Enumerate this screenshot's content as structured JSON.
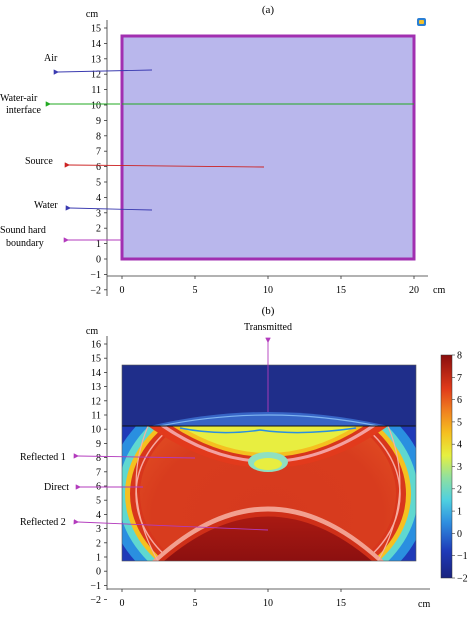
{
  "panel_a": {
    "label": "(a)",
    "y_unit": "cm",
    "x_unit": "cm",
    "y_ticks": [
      "15",
      "14",
      "13",
      "12",
      "11",
      "10",
      "9",
      "8",
      "7",
      "6",
      "5",
      "4",
      "3",
      "2",
      "1",
      "0",
      "−1",
      "−2"
    ],
    "x_ticks": [
      "0",
      "5",
      "10",
      "15",
      "20"
    ],
    "annotations": {
      "air": "Air",
      "interface_line1": "Water-air",
      "interface_line2": "interface",
      "source": "Source",
      "water": "Water",
      "boundary_line1": "Sound hard",
      "boundary_line2": "boundary"
    },
    "colors": {
      "domain_fill": "#b9b7ec",
      "domain_border": "#a12fb0",
      "interface": "#22aa22",
      "source_arrow": "#cc2222",
      "label_arrow": "#3a3ab0"
    }
  },
  "panel_b": {
    "label": "(b)",
    "y_unit": "cm",
    "x_unit": "cm",
    "y_ticks": [
      "16",
      "15",
      "14",
      "13",
      "12",
      "11",
      "10",
      "9",
      "8",
      "7",
      "6",
      "5",
      "4",
      "3",
      "2",
      "1",
      "0",
      "−1",
      "−2"
    ],
    "x_ticks": [
      "0",
      "5",
      "10",
      "15"
    ],
    "annotations": {
      "transmitted": "Transmitted",
      "reflected_1": "Reflected 1",
      "direct": "Direct",
      "reflected_2": "Reflected 2"
    },
    "colorbar_ticks": [
      "8",
      "7",
      "6",
      "5",
      "4",
      "3",
      "2",
      "1",
      "0",
      "−1",
      "−2"
    ],
    "colors": {
      "air_region": "#1f2e8a",
      "arrow": "#b33bbd"
    }
  }
}
